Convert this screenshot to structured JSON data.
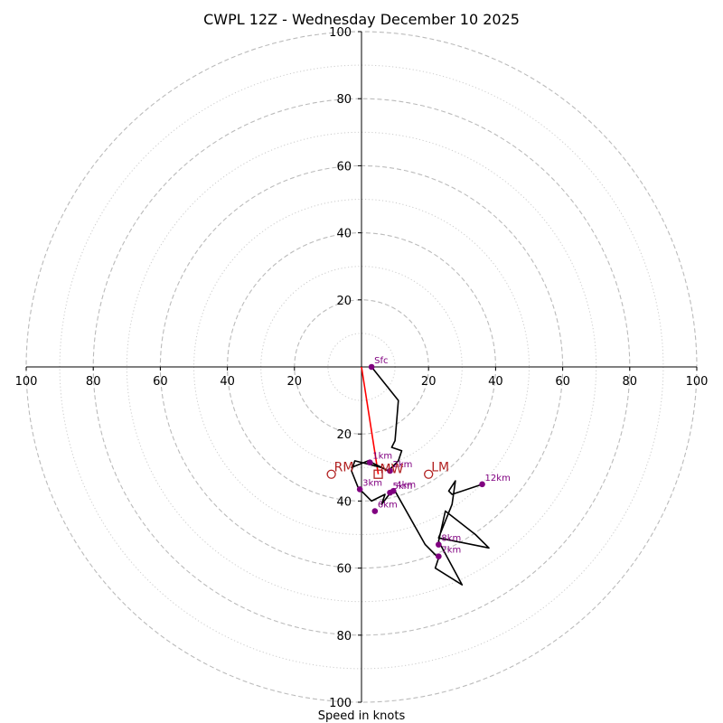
{
  "chart_data": {
    "type": "hodograph",
    "title": "CWPL 12Z - Wednesday December 10 2025",
    "xlabel": "Speed in knots",
    "units": "knots",
    "range": [
      -100,
      100
    ],
    "ring_major": [
      20,
      40,
      60,
      80,
      100
    ],
    "ring_minor": [
      10,
      30,
      50,
      70,
      90
    ],
    "tick_labels_x": [
      "100",
      "80",
      "60",
      "40",
      "20",
      "20",
      "40",
      "60",
      "80",
      "100"
    ],
    "tick_values_x": [
      -100,
      -80,
      -60,
      -40,
      -20,
      20,
      40,
      60,
      80,
      100
    ],
    "tick_labels_y": [
      "100",
      "80",
      "60",
      "40",
      "20",
      "20",
      "40",
      "60",
      "80",
      "100"
    ],
    "tick_values_y": [
      100,
      80,
      60,
      40,
      20,
      -20,
      -40,
      -60,
      -80,
      -100
    ],
    "trace": [
      {
        "u": 3,
        "v": 0
      },
      {
        "u": 11,
        "v": -10
      },
      {
        "u": 10,
        "v": -22
      },
      {
        "u": 9,
        "v": -24
      },
      {
        "u": 12,
        "v": -25
      },
      {
        "u": 11,
        "v": -28
      },
      {
        "u": 8,
        "v": -31
      },
      {
        "u": 2,
        "v": -28
      },
      {
        "u": -3,
        "v": -30
      },
      {
        "u": 2,
        "v": -28
      },
      {
        "u": 4,
        "v": -29
      },
      {
        "u": 8,
        "v": -31
      },
      {
        "u": 6,
        "v": -30
      },
      {
        "u": -2,
        "v": -28
      },
      {
        "u": -3,
        "v": -31
      },
      {
        "u": -1,
        "v": -36
      },
      {
        "u": 3,
        "v": -40
      },
      {
        "u": 7,
        "v": -38
      },
      {
        "u": 6,
        "v": -41
      },
      {
        "u": 9,
        "v": -37
      },
      {
        "u": 10,
        "v": -37
      },
      {
        "u": 19,
        "v": -53
      },
      {
        "u": 23,
        "v": -57
      },
      {
        "u": 22,
        "v": -60
      },
      {
        "u": 30,
        "v": -65
      },
      {
        "u": 23,
        "v": -52
      },
      {
        "u": 25,
        "v": -43
      },
      {
        "u": 34,
        "v": -50
      },
      {
        "u": 38,
        "v": -54
      },
      {
        "u": 23,
        "v": -51
      },
      {
        "u": 27,
        "v": -41
      },
      {
        "u": 28,
        "v": -34
      },
      {
        "u": 26,
        "v": -37
      },
      {
        "u": 27,
        "v": -38
      },
      {
        "u": 36,
        "v": -35
      }
    ],
    "heights": [
      {
        "label": "Sfc",
        "u": 3,
        "v": 0
      },
      {
        "label": "1km",
        "u": 2.5,
        "v": -28.5
      },
      {
        "label": "2km",
        "u": 8.5,
        "v": -31
      },
      {
        "label": "3km",
        "u": -0.5,
        "v": -36.5
      },
      {
        "label": "4km",
        "u": 9.5,
        "v": -37
      },
      {
        "label": "5km",
        "u": 8.5,
        "v": -37.5
      },
      {
        "label": "6km",
        "u": 4,
        "v": -43
      },
      {
        "label": "7km",
        "u": 23,
        "v": -56.5
      },
      {
        "label": "8km",
        "u": 23,
        "v": -53
      },
      {
        "label": "12km",
        "u": 36,
        "v": -35
      }
    ],
    "storm_motions": [
      {
        "label": "RM",
        "u": -9,
        "v": -32
      },
      {
        "label": "LM",
        "u": 20,
        "v": -32
      }
    ],
    "mean_wind": {
      "label": "MW",
      "u": 5,
      "v": -32
    },
    "shear_vector": {
      "from": {
        "u": 0,
        "v": 0
      },
      "to": {
        "u": 5,
        "v": -32
      }
    }
  },
  "colors": {
    "trace": "#000000",
    "shear": "#ff0000",
    "height_marker": "#800080",
    "motion": "#b22222",
    "ring_major": "#bbbbbb",
    "ring_minor": "#cccccc"
  }
}
